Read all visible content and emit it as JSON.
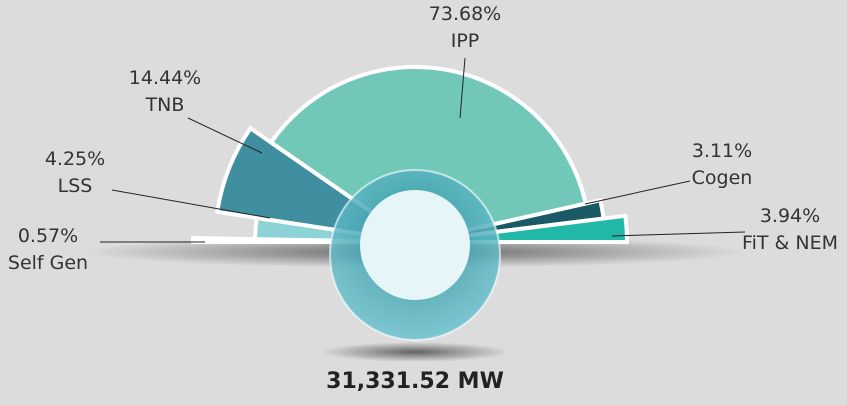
{
  "chart_data": {
    "type": "pie",
    "categories": [
      "Self Gen",
      "LSS",
      "TNB",
      "IPP",
      "Cogen",
      "FiT & NEM"
    ],
    "values": [
      0.57,
      4.25,
      14.44,
      73.68,
      3.11,
      3.94
    ],
    "value_labels": [
      "0.57%",
      "4.25%",
      "14.44%",
      "73.68%",
      "3.11%",
      "3.94%"
    ],
    "colors": [
      "#1a9a94",
      "#8dd3d6",
      "#3f8fa0",
      "#72c8b8",
      "#1a5a66",
      "#22b8a8"
    ],
    "total_label": "31,331.52 MW"
  }
}
